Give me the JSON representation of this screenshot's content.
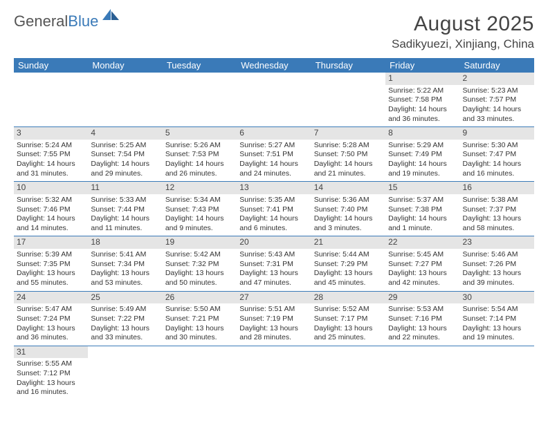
{
  "logo": {
    "text1": "General",
    "text2": "Blue"
  },
  "title": "August 2025",
  "location": "Sadikyuezi, Xinjiang, China",
  "colors": {
    "header_bg": "#3a7ab8",
    "header_fg": "#ffffff",
    "daynum_bg": "#e5e5e5",
    "rule": "#3a7ab8"
  },
  "weekdays": [
    "Sunday",
    "Monday",
    "Tuesday",
    "Wednesday",
    "Thursday",
    "Friday",
    "Saturday"
  ],
  "weeks": [
    [
      null,
      null,
      null,
      null,
      null,
      {
        "n": "1",
        "sr": "5:22 AM",
        "ss": "7:58 PM",
        "dl": "14 hours and 36 minutes."
      },
      {
        "n": "2",
        "sr": "5:23 AM",
        "ss": "7:57 PM",
        "dl": "14 hours and 33 minutes."
      }
    ],
    [
      {
        "n": "3",
        "sr": "5:24 AM",
        "ss": "7:55 PM",
        "dl": "14 hours and 31 minutes."
      },
      {
        "n": "4",
        "sr": "5:25 AM",
        "ss": "7:54 PM",
        "dl": "14 hours and 29 minutes."
      },
      {
        "n": "5",
        "sr": "5:26 AM",
        "ss": "7:53 PM",
        "dl": "14 hours and 26 minutes."
      },
      {
        "n": "6",
        "sr": "5:27 AM",
        "ss": "7:51 PM",
        "dl": "14 hours and 24 minutes."
      },
      {
        "n": "7",
        "sr": "5:28 AM",
        "ss": "7:50 PM",
        "dl": "14 hours and 21 minutes."
      },
      {
        "n": "8",
        "sr": "5:29 AM",
        "ss": "7:49 PM",
        "dl": "14 hours and 19 minutes."
      },
      {
        "n": "9",
        "sr": "5:30 AM",
        "ss": "7:47 PM",
        "dl": "14 hours and 16 minutes."
      }
    ],
    [
      {
        "n": "10",
        "sr": "5:32 AM",
        "ss": "7:46 PM",
        "dl": "14 hours and 14 minutes."
      },
      {
        "n": "11",
        "sr": "5:33 AM",
        "ss": "7:44 PM",
        "dl": "14 hours and 11 minutes."
      },
      {
        "n": "12",
        "sr": "5:34 AM",
        "ss": "7:43 PM",
        "dl": "14 hours and 9 minutes."
      },
      {
        "n": "13",
        "sr": "5:35 AM",
        "ss": "7:41 PM",
        "dl": "14 hours and 6 minutes."
      },
      {
        "n": "14",
        "sr": "5:36 AM",
        "ss": "7:40 PM",
        "dl": "14 hours and 3 minutes."
      },
      {
        "n": "15",
        "sr": "5:37 AM",
        "ss": "7:38 PM",
        "dl": "14 hours and 1 minute."
      },
      {
        "n": "16",
        "sr": "5:38 AM",
        "ss": "7:37 PM",
        "dl": "13 hours and 58 minutes."
      }
    ],
    [
      {
        "n": "17",
        "sr": "5:39 AM",
        "ss": "7:35 PM",
        "dl": "13 hours and 55 minutes."
      },
      {
        "n": "18",
        "sr": "5:41 AM",
        "ss": "7:34 PM",
        "dl": "13 hours and 53 minutes."
      },
      {
        "n": "19",
        "sr": "5:42 AM",
        "ss": "7:32 PM",
        "dl": "13 hours and 50 minutes."
      },
      {
        "n": "20",
        "sr": "5:43 AM",
        "ss": "7:31 PM",
        "dl": "13 hours and 47 minutes."
      },
      {
        "n": "21",
        "sr": "5:44 AM",
        "ss": "7:29 PM",
        "dl": "13 hours and 45 minutes."
      },
      {
        "n": "22",
        "sr": "5:45 AM",
        "ss": "7:27 PM",
        "dl": "13 hours and 42 minutes."
      },
      {
        "n": "23",
        "sr": "5:46 AM",
        "ss": "7:26 PM",
        "dl": "13 hours and 39 minutes."
      }
    ],
    [
      {
        "n": "24",
        "sr": "5:47 AM",
        "ss": "7:24 PM",
        "dl": "13 hours and 36 minutes."
      },
      {
        "n": "25",
        "sr": "5:49 AM",
        "ss": "7:22 PM",
        "dl": "13 hours and 33 minutes."
      },
      {
        "n": "26",
        "sr": "5:50 AM",
        "ss": "7:21 PM",
        "dl": "13 hours and 30 minutes."
      },
      {
        "n": "27",
        "sr": "5:51 AM",
        "ss": "7:19 PM",
        "dl": "13 hours and 28 minutes."
      },
      {
        "n": "28",
        "sr": "5:52 AM",
        "ss": "7:17 PM",
        "dl": "13 hours and 25 minutes."
      },
      {
        "n": "29",
        "sr": "5:53 AM",
        "ss": "7:16 PM",
        "dl": "13 hours and 22 minutes."
      },
      {
        "n": "30",
        "sr": "5:54 AM",
        "ss": "7:14 PM",
        "dl": "13 hours and 19 minutes."
      }
    ],
    [
      {
        "n": "31",
        "sr": "5:55 AM",
        "ss": "7:12 PM",
        "dl": "13 hours and 16 minutes."
      },
      null,
      null,
      null,
      null,
      null,
      null
    ]
  ],
  "labels": {
    "sunrise": "Sunrise: ",
    "sunset": "Sunset: ",
    "daylight": "Daylight: "
  }
}
